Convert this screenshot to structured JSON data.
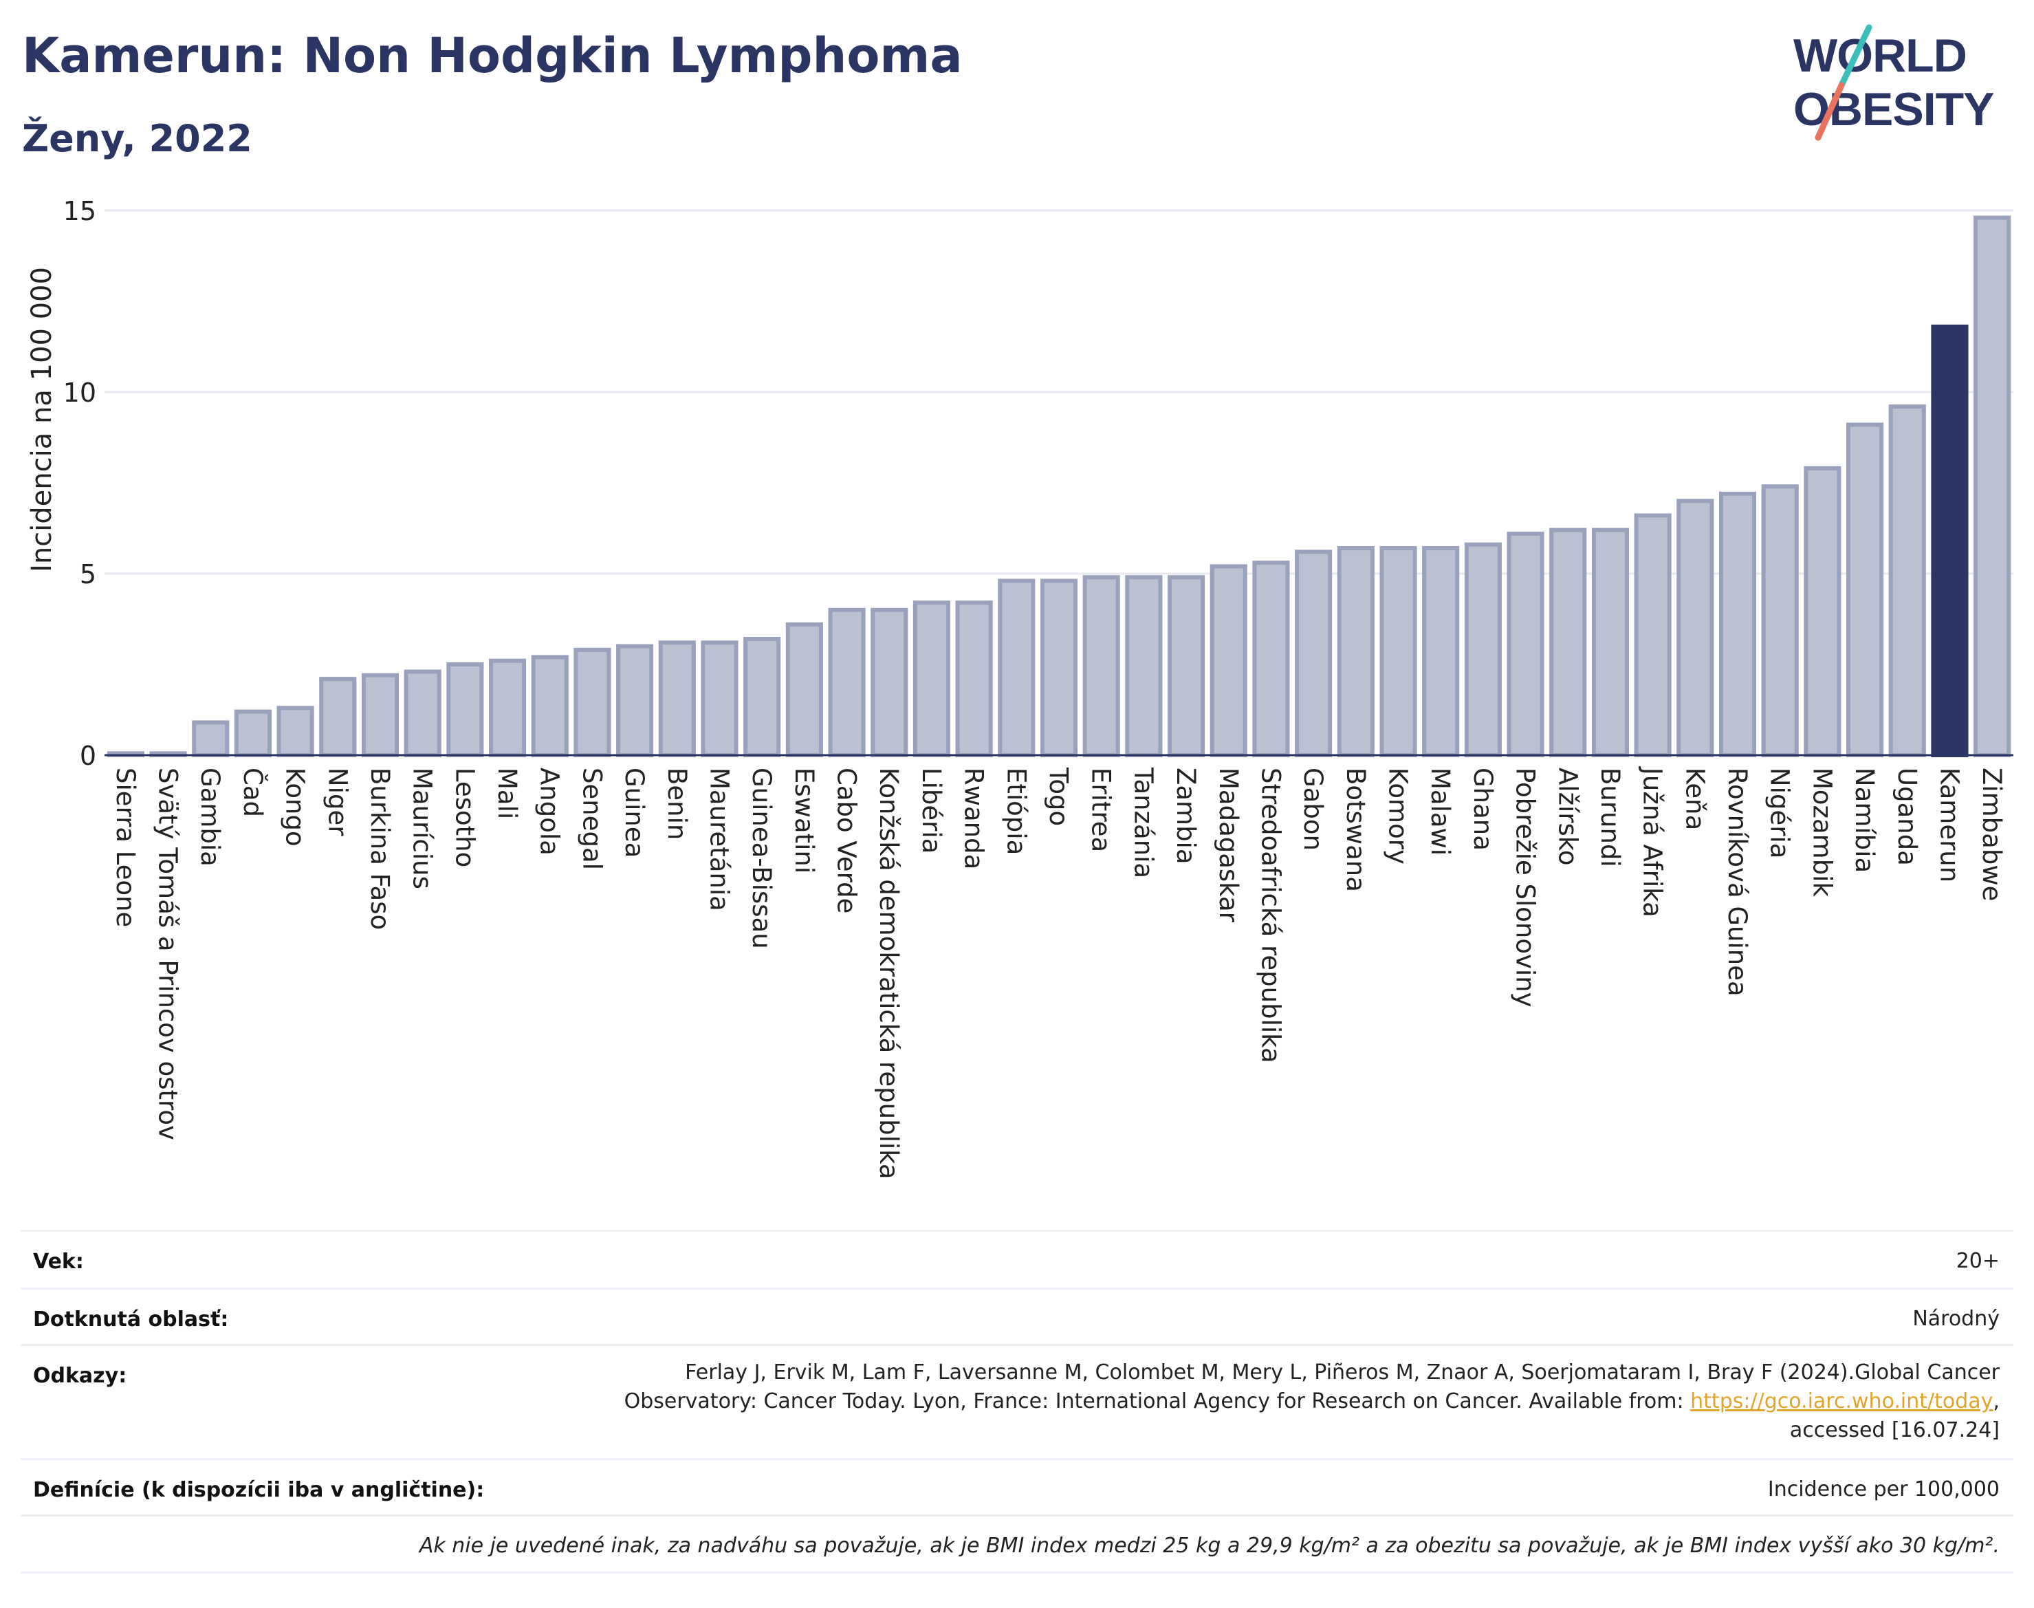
{
  "title": "Kamerun: Non Hodgkin Lymphoma",
  "subtitle": "Ženy, 2022",
  "logo": {
    "line1": "WORLD",
    "line2": "OBESITY",
    "text_color": "#2b3563",
    "slash_colors": [
      "#3bbfb8",
      "#e8735f"
    ]
  },
  "colors": {
    "bar_default": "#bcc1d1",
    "bar_stroke": "#9aa1bd",
    "bar_highlight": "#2b3563",
    "grid": "#e7e9ef",
    "axis": "#2b3563"
  },
  "chart_data": {
    "type": "bar",
    "ylabel": "Incidencia na 100 000",
    "xlabel": "",
    "ylim": [
      0,
      15
    ],
    "yticks": [
      0,
      5,
      10,
      15
    ],
    "grid": true,
    "highlight": "Kamerun",
    "categories": [
      "Sierra Leone",
      "Svätý Tomáš a Princov ostrov",
      "Gambia",
      "Čad",
      "Kongo",
      "Niger",
      "Burkina Faso",
      "Maurícius",
      "Lesotho",
      "Mali",
      "Angola",
      "Senegal",
      "Guinea",
      "Benin",
      "Mauretánia",
      "Guinea-Bissau",
      "Eswatini",
      "Cabo Verde",
      "Konžská demokratická republika",
      "Libéria",
      "Rwanda",
      "Etiópia",
      "Togo",
      "Eritrea",
      "Tanzánia",
      "Zambia",
      "Madagaskar",
      "Stredoafrická republika",
      "Gabon",
      "Botswana",
      "Komory",
      "Malawi",
      "Ghana",
      "Pobrežie Slonoviny",
      "Alžírsko",
      "Burundi",
      "Južná Afrika",
      "Keňa",
      "Rovníková Guinea",
      "Nigéria",
      "Mozambik",
      "Namíbia",
      "Uganda",
      "Kamerun",
      "Zimbabwe"
    ],
    "values": [
      0.05,
      0.05,
      0.9,
      1.2,
      1.3,
      2.1,
      2.2,
      2.3,
      2.5,
      2.6,
      2.7,
      2.9,
      3.0,
      3.1,
      3.1,
      3.2,
      3.6,
      4.0,
      4.0,
      4.2,
      4.2,
      4.8,
      4.8,
      4.9,
      4.9,
      4.9,
      5.2,
      5.3,
      5.6,
      5.7,
      5.7,
      5.7,
      5.8,
      6.1,
      6.2,
      6.2,
      6.6,
      7.0,
      7.2,
      7.4,
      7.9,
      9.1,
      9.6,
      11.8,
      14.8
    ]
  },
  "info": {
    "age_label": "Vek:",
    "age_value": "20+",
    "area_label": "Dotknutá oblasť:",
    "area_value": "Národný",
    "refs_label": "Odkazy:",
    "refs_line1": "Ferlay J, Ervik M, Lam F, Laversanne M, Colombet M, Mery L, Piñeros M, Znaor A, Soerjomataram I, Bray F (2024).Global Cancer",
    "refs_line2_pre": "Observatory: Cancer Today. Lyon, France: International Agency for Research on Cancer. Available from: ",
    "refs_link": "https://gco.iarc.who.int/today",
    "refs_line2_post": ",",
    "refs_line3": "accessed [16.07.24]",
    "def_label": "Definície (k dispozícii iba v angličtine):",
    "def_value": "Incidence per 100,000",
    "footnote": "Ak nie je uvedené inak, za nadváhu sa považuje, ak je BMI index medzi 25 kg a 29,9 kg/m² a za obezitu sa považuje, ak je BMI index vyšší ako 30 kg/m²."
  }
}
